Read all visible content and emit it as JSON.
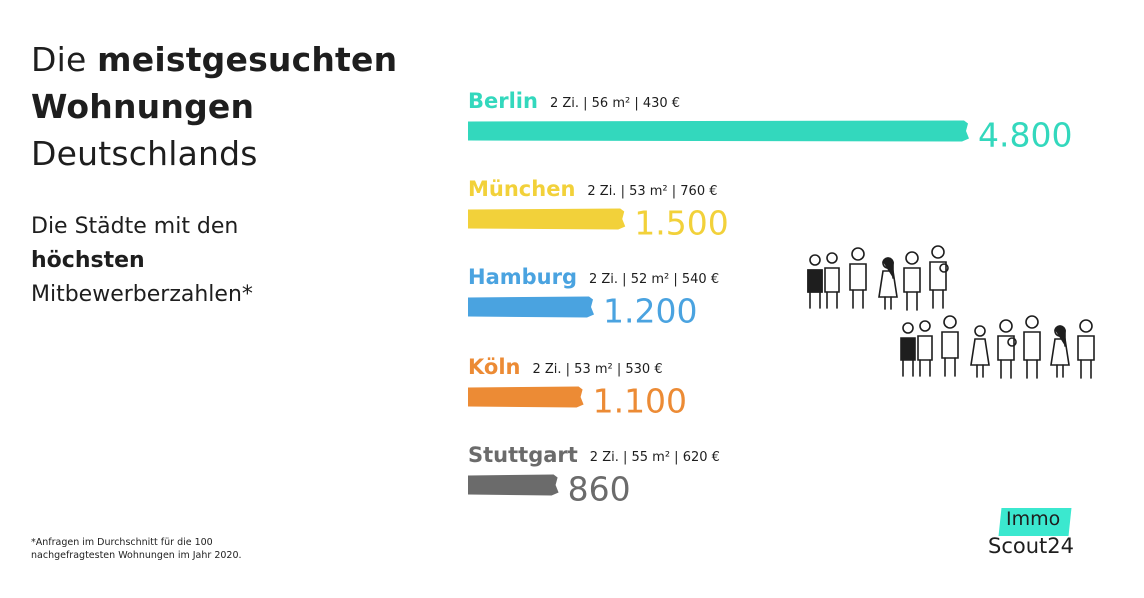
{
  "title": {
    "line1_plain": "Die ",
    "line1_bold": "meistgesuchten",
    "line2_bold": "Wohnungen",
    "line3_plain": "Deutschlands"
  },
  "subtitle": {
    "line1": "Die Städte mit den",
    "line2_bold": "höchsten",
    "line3": "Mitbewerberzahlen*"
  },
  "footnote": {
    "line1": "*Anfragen im Durchschnitt für die 100",
    "line2": "nachgefragtesten Wohnungen im Jahr 2020."
  },
  "logo": {
    "top": "Immo",
    "bottom": "Scout24",
    "accent": "#3be8cf"
  },
  "illustration": {
    "icon": "crowd-of-people-icon"
  },
  "chart_data": {
    "type": "bar",
    "orientation": "horizontal",
    "categories": [
      "Berlin",
      "München",
      "Hamburg",
      "Köln",
      "Stuttgart"
    ],
    "specs": [
      "2 Zi. | 56 m² | 430 €",
      "2 Zi. | 53 m² | 760 €",
      "2 Zi. | 52 m² | 540 €",
      "2 Zi. | 53 m² | 530 €",
      "2 Zi. | 55 m² | 620 €"
    ],
    "values": [
      4800,
      1500,
      1200,
      1100,
      860
    ],
    "value_labels": [
      "4.800",
      "1.500",
      "1.200",
      "1.100",
      "860"
    ],
    "colors": [
      "#33d8bd",
      "#f2d13a",
      "#4aa3e0",
      "#ec8b35",
      "#6b6b6b"
    ],
    "grid": false,
    "legend": "none"
  }
}
